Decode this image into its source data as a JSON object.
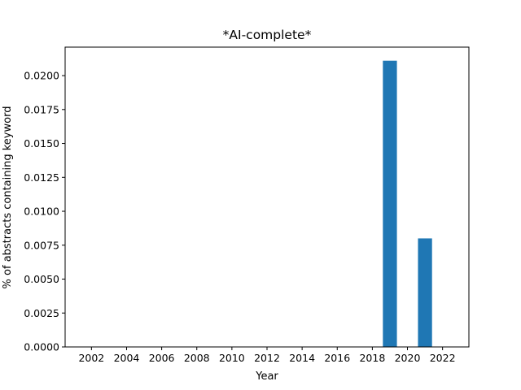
{
  "chart_data": {
    "type": "bar",
    "title": "*AI-complete*",
    "xlabel": "Year",
    "ylabel": "% of abstracts containing keyword",
    "xlim": [
      2000.5,
      2023.5
    ],
    "ylim": [
      0,
      0.0221
    ],
    "bar_width": 0.8,
    "x_ticks": [
      2002,
      2004,
      2006,
      2008,
      2010,
      2012,
      2014,
      2016,
      2018,
      2020,
      2022
    ],
    "y_ticks": [
      0.0,
      0.0025,
      0.005,
      0.0075,
      0.01,
      0.0125,
      0.015,
      0.0175,
      0.02
    ],
    "y_tick_labels": [
      "0.0000",
      "0.0025",
      "0.0050",
      "0.0075",
      "0.0100",
      "0.0125",
      "0.0150",
      "0.0175",
      "0.0200"
    ],
    "bar_color": "#1f77b4",
    "grid": false,
    "legend": "none",
    "series": [
      {
        "x": [
          2019,
          2021
        ],
        "values": [
          0.0211,
          0.008
        ]
      }
    ]
  }
}
